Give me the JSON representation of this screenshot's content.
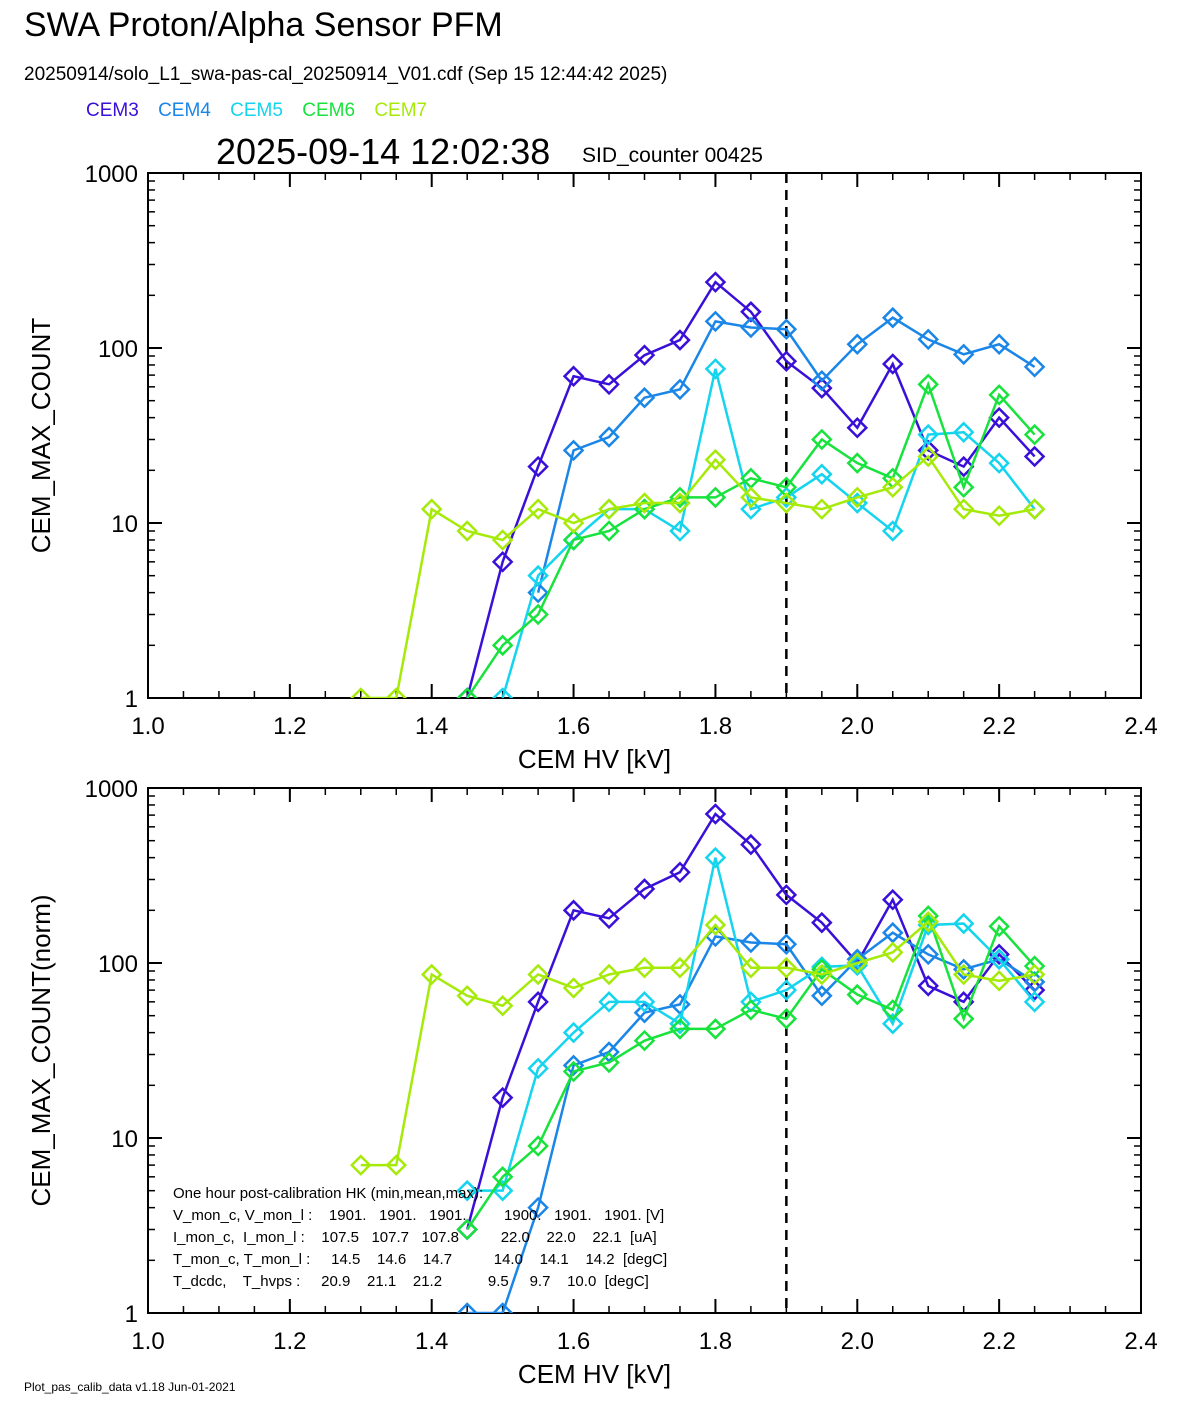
{
  "header": {
    "title": "SWA Proton/Alpha Sensor PFM",
    "subtitle": "20250914/solo_L1_swa-pas-cal_20250914_V01.cdf  (Sep 15 12:44:42 2025)",
    "timestamp": "2025-09-14 12:02:38",
    "sid_counter": "SID_counter 00425"
  },
  "legend": [
    {
      "name": "CEM3",
      "color": "#3a10d8"
    },
    {
      "name": "CEM4",
      "color": "#1a86e8"
    },
    {
      "name": "CEM5",
      "color": "#14d4ee"
    },
    {
      "name": "CEM6",
      "color": "#18e23c"
    },
    {
      "name": "CEM7",
      "color": "#a6ea0a"
    }
  ],
  "footer": "Plot_pas_calib_data v1.18 Jun-01-2021",
  "hk_box": {
    "lines": [
      "One hour post-calibration HK (min,mean,max):",
      "V_mon_c, V_mon_l :    1901.   1901.   1901.         1900.   1901.   1901. [V]",
      "I_mon_c,  I_mon_l :    107.5   107.7   107.8          22.0    22.0    22.1  [uA]",
      "T_mon_c, T_mon_l :     14.5    14.6    14.7          14.0    14.1    14.2  [degC]",
      "T_dcdc,    T_hvps :     20.9    21.1    21.2           9.5     9.7    10.0  [degC]"
    ]
  },
  "chart_data": [
    {
      "type": "line",
      "ylabel": "CEM_MAX_COUNT",
      "xlabel": "CEM HV [kV]",
      "xlim": [
        1.0,
        2.4
      ],
      "ylim": [
        1,
        1000
      ],
      "yscale": "log",
      "xticks": [
        "1.0",
        "1.2",
        "1.4",
        "1.6",
        "1.8",
        "2.0",
        "2.2",
        "2.4"
      ],
      "yticks": [
        "1",
        "10",
        "100",
        "1000"
      ],
      "vline": 1.9,
      "series": [
        {
          "name": "CEM3",
          "x": [
            1.45,
            1.5,
            1.55,
            1.6,
            1.65,
            1.7,
            1.75,
            1.8,
            1.85,
            1.9,
            1.95,
            2.0,
            2.05,
            2.1,
            2.15,
            2.2,
            2.25
          ],
          "values": [
            1,
            6,
            21,
            69,
            62,
            91,
            111,
            238,
            161,
            84,
            59,
            35,
            81,
            26,
            21,
            40,
            24
          ]
        },
        {
          "name": "CEM4",
          "x": [
            1.55,
            1.6,
            1.65,
            1.7,
            1.75,
            1.8,
            1.85,
            1.9,
            1.95,
            2.0,
            2.05,
            2.1,
            2.15,
            2.2,
            2.25
          ],
          "values": [
            4,
            26,
            31,
            52,
            58,
            142,
            131,
            128,
            65,
            105,
            149,
            112,
            92,
            105,
            78
          ]
        },
        {
          "name": "CEM5",
          "x": [
            1.5,
            1.55,
            1.6,
            1.65,
            1.7,
            1.75,
            1.8,
            1.85,
            1.9,
            1.95,
            2.0,
            2.05,
            2.1,
            2.15,
            2.2,
            2.25
          ],
          "values": [
            1,
            5,
            8,
            12,
            12,
            9,
            76,
            12,
            14,
            19,
            13,
            9,
            32,
            33,
            22,
            12
          ]
        },
        {
          "name": "CEM6",
          "x": [
            1.45,
            1.5,
            1.55,
            1.6,
            1.65,
            1.7,
            1.75,
            1.8,
            1.85,
            1.9,
            1.95,
            2.0,
            2.05,
            2.1,
            2.15,
            2.2,
            2.25
          ],
          "values": [
            1,
            2,
            3,
            8,
            9,
            12,
            14,
            14,
            18,
            16,
            30,
            22,
            18,
            62,
            16,
            54,
            32
          ]
        },
        {
          "name": "CEM7",
          "x": [
            1.3,
            1.35,
            1.4,
            1.45,
            1.5,
            1.55,
            1.6,
            1.65,
            1.7,
            1.75,
            1.8,
            1.85,
            1.9,
            1.95,
            2.0,
            2.05,
            2.1,
            2.15,
            2.2,
            2.25
          ],
          "values": [
            1,
            1,
            12,
            9,
            8,
            12,
            10,
            12,
            13,
            13,
            23,
            14,
            13,
            12,
            14,
            16,
            24,
            12,
            11,
            12
          ]
        }
      ]
    },
    {
      "type": "line",
      "ylabel": "CEM_MAX_COUNT(norm)",
      "xlabel": "CEM HV [kV]",
      "xlim": [
        1.0,
        2.4
      ],
      "ylim": [
        1,
        1000
      ],
      "yscale": "log",
      "xticks": [
        "1.0",
        "1.2",
        "1.4",
        "1.6",
        "1.8",
        "2.0",
        "2.2",
        "2.4"
      ],
      "yticks": [
        "1",
        "10",
        "100",
        "1000"
      ],
      "vline": 1.9,
      "series": [
        {
          "name": "CEM3",
          "x": [
            1.45,
            1.5,
            1.55,
            1.6,
            1.65,
            1.7,
            1.75,
            1.8,
            1.85,
            1.9,
            1.95,
            2.0,
            2.05,
            2.1,
            2.15,
            2.2,
            2.25
          ],
          "values": [
            3,
            17,
            60,
            200,
            180,
            265,
            330,
            710,
            475,
            245,
            170,
            100,
            230,
            74,
            60,
            112,
            70
          ]
        },
        {
          "name": "CEM4",
          "x": [
            1.45,
            1.5,
            1.55,
            1.6,
            1.65,
            1.7,
            1.75,
            1.8,
            1.85,
            1.9,
            1.95,
            2.0,
            2.05,
            2.1,
            2.15,
            2.2,
            2.25
          ],
          "values": [
            1,
            1,
            4,
            26,
            31,
            52,
            58,
            142,
            131,
            128,
            65,
            105,
            149,
            112,
            92,
            105,
            78
          ]
        },
        {
          "name": "CEM5",
          "x": [
            1.45,
            1.5,
            1.55,
            1.6,
            1.65,
            1.7,
            1.75,
            1.8,
            1.85,
            1.9,
            1.95,
            2.0,
            2.05,
            2.1,
            2.15,
            2.2,
            2.25
          ],
          "values": [
            5,
            5,
            25,
            40,
            60,
            60,
            45,
            400,
            60,
            70,
            95,
            97,
            45,
            165,
            168,
            105,
            60
          ]
        },
        {
          "name": "CEM6",
          "x": [
            1.45,
            1.5,
            1.55,
            1.6,
            1.65,
            1.7,
            1.75,
            1.8,
            1.85,
            1.9,
            1.95,
            2.0,
            2.05,
            2.1,
            2.15,
            2.2,
            2.25
          ],
          "values": [
            3,
            6,
            9,
            24,
            27,
            36,
            42,
            42,
            54,
            48,
            92,
            66,
            54,
            186,
            48,
            162,
            96
          ]
        },
        {
          "name": "CEM7",
          "x": [
            1.3,
            1.35,
            1.4,
            1.45,
            1.5,
            1.55,
            1.6,
            1.65,
            1.7,
            1.75,
            1.8,
            1.85,
            1.9,
            1.95,
            2.0,
            2.05,
            2.1,
            2.15,
            2.2,
            2.25
          ],
          "values": [
            7,
            7,
            86,
            65,
            57,
            86,
            72,
            86,
            94,
            94,
            165,
            94,
            94,
            86,
            100,
            115,
            172,
            86,
            79,
            86
          ]
        }
      ]
    }
  ]
}
